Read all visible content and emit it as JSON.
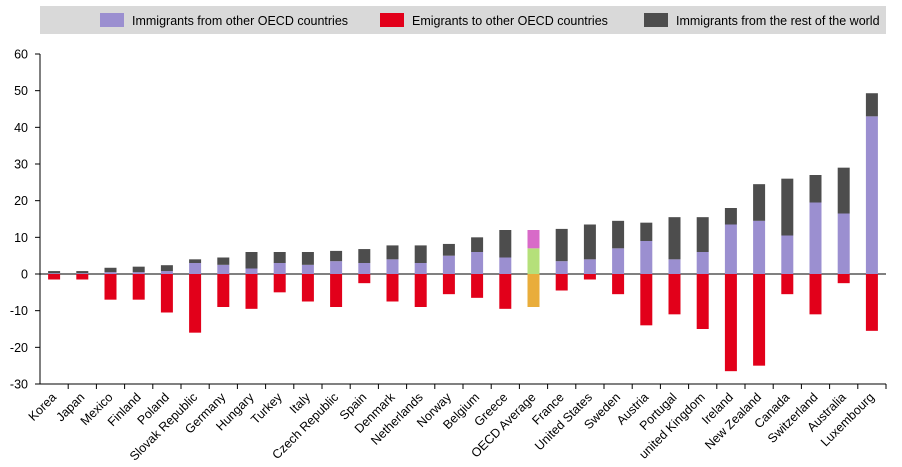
{
  "chart_data": {
    "type": "bar",
    "stacked": true,
    "ylim": [
      -30,
      60
    ],
    "yticks": [
      -30,
      -20,
      -10,
      0,
      10,
      20,
      30,
      40,
      50,
      60
    ],
    "grid": false,
    "legend_position": "top",
    "categories": [
      "Korea",
      "Japan",
      "Mexico",
      "Finland",
      "Poland",
      "Slovak Republic",
      "Germany",
      "Hungary",
      "Turkey",
      "Italy",
      "Czech Republic",
      "Spain",
      "Denmark",
      "Netherlands",
      "Norway",
      "Belgium",
      "Greece",
      "OECD Average",
      "France",
      "United States",
      "Sweden",
      "Austria",
      "Portugal",
      "united Kingdom",
      "Ireland",
      "New Zealand",
      "Canada",
      "Switzerland",
      "Australia",
      "Luxembourg"
    ],
    "series": [
      {
        "name": "Immigrants from other OECD countries",
        "color": "#9b8fd0",
        "values": [
          0.2,
          0.2,
          0.5,
          0.5,
          0.8,
          3,
          2.5,
          1.5,
          3,
          2.5,
          3.5,
          3,
          4,
          3,
          5,
          6,
          4.5,
          7,
          3.5,
          4,
          7,
          9,
          4,
          6,
          13.5,
          14.5,
          10.5,
          19.5,
          16.5,
          43
        ]
      },
      {
        "name": "Emigrants to other OECD countries",
        "color": "#e2001a",
        "values": [
          -1.5,
          -1.5,
          -7,
          -7,
          -10.5,
          -16,
          -9,
          -9.5,
          -5,
          -7.5,
          -9,
          -2.5,
          -7.5,
          -9,
          -5.5,
          -6.5,
          -9.5,
          -9,
          -4.5,
          -1.5,
          -5.5,
          -14,
          -11,
          -15,
          -26.5,
          -25,
          -5.5,
          -11,
          -2.5,
          -15.5
        ]
      },
      {
        "name": "Immigrants from the rest of the world",
        "color": "#4d4d4d",
        "values": [
          0.6,
          0.6,
          1.2,
          1.5,
          1.6,
          1,
          2,
          4.5,
          3,
          3.5,
          2.8,
          3.8,
          3.8,
          4.8,
          3.2,
          4,
          7.5,
          5,
          8.8,
          9.5,
          7.5,
          5,
          11.5,
          9.5,
          4.5,
          10,
          15.5,
          7.5,
          12.5,
          6.3
        ]
      }
    ],
    "highlight": {
      "category": "OECD Average",
      "colors": [
        "#b5e07a",
        "#e9ad3b",
        "#d86ac8"
      ]
    }
  }
}
